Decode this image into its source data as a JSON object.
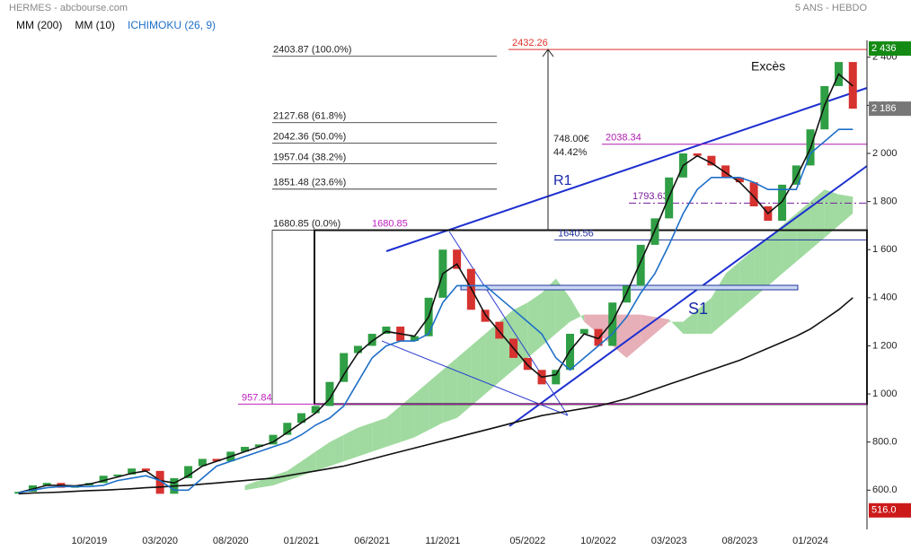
{
  "chart_data": {
    "type": "candlestick",
    "title": "HERMES - abcbourse.com",
    "subtitle": "5 ANS - HEBDO",
    "x": [
      "05/2019",
      "06/2019",
      "07/2019",
      "08/2019",
      "09/2019",
      "10/2019",
      "11/2019",
      "12/2019",
      "01/2020",
      "02/2020",
      "03/2020",
      "04/2020",
      "05/2020",
      "06/2020",
      "07/2020",
      "08/2020",
      "09/2020",
      "10/2020",
      "11/2020",
      "12/2020",
      "01/2021",
      "02/2021",
      "03/2021",
      "04/2021",
      "05/2021",
      "06/2021",
      "07/2021",
      "08/2021",
      "09/2021",
      "10/2021",
      "11/2021",
      "12/2021",
      "01/2022",
      "02/2022",
      "03/2022",
      "04/2022",
      "05/2022",
      "06/2022",
      "07/2022",
      "08/2022",
      "09/2022",
      "10/2022",
      "11/2022",
      "12/2022",
      "01/2023",
      "02/2023",
      "03/2023",
      "04/2023",
      "05/2023",
      "06/2023",
      "07/2023",
      "08/2023",
      "09/2023",
      "10/2023",
      "11/2023",
      "12/2023",
      "01/2024",
      "02/2024",
      "03/2024",
      "04/2024"
    ],
    "price": {
      "up_color": "#2f9e44",
      "down_color": "#d6322f",
      "values": [
        593,
        620,
        630,
        610,
        620,
        630,
        660,
        665,
        690,
        680,
        585,
        650,
        700,
        730,
        720,
        760,
        780,
        790,
        830,
        880,
        920,
        950,
        1050,
        1170,
        1200,
        1250,
        1280,
        1220,
        1240,
        1400,
        1600,
        1520,
        1350,
        1300,
        1230,
        1150,
        1100,
        1040,
        1100,
        1250,
        1270,
        1200,
        1380,
        1450,
        1620,
        1730,
        1900,
        2000,
        1990,
        1950,
        1900,
        1880,
        1780,
        1720,
        1870,
        1950,
        2100,
        2280,
        2380,
        2186
      ]
    },
    "series": [
      {
        "name": "MM (200)",
        "color": "#111111",
        "values": [
          585,
          588,
          590,
          592,
          595,
          598,
          600,
          603,
          606,
          610,
          613,
          617,
          620,
          625,
          630,
          635,
          640,
          645,
          650,
          660,
          670,
          680,
          690,
          700,
          715,
          730,
          745,
          760,
          775,
          790,
          805,
          820,
          835,
          850,
          865,
          880,
          895,
          910,
          920,
          930,
          940,
          950,
          965,
          980,
          1000,
          1020,
          1040,
          1060,
          1080,
          1100,
          1120,
          1140,
          1165,
          1190,
          1215,
          1240,
          1270,
          1310,
          1350,
          1400
        ]
      },
      {
        "name": "MM (10)",
        "color": "#111111",
        "values": [
          590,
          605,
          620,
          620,
          618,
          625,
          640,
          655,
          670,
          680,
          640,
          630,
          660,
          700,
          720,
          740,
          760,
          780,
          800,
          840,
          880,
          920,
          980,
          1080,
          1170,
          1220,
          1260,
          1250,
          1240,
          1320,
          1500,
          1540,
          1440,
          1330,
          1260,
          1190,
          1120,
          1070,
          1080,
          1180,
          1250,
          1230,
          1300,
          1420,
          1550,
          1680,
          1820,
          1950,
          1990,
          1960,
          1920,
          1880,
          1820,
          1750,
          1800,
          1900,
          2020,
          2200,
          2330,
          2280
        ]
      },
      {
        "name": "ICHIMOKU (26, 9)",
        "color": "#1e6fc8",
        "values": [
          590,
          600,
          610,
          615,
          615,
          615,
          620,
          640,
          650,
          660,
          640,
          600,
          600,
          650,
          700,
          720,
          740,
          760,
          780,
          800,
          830,
          870,
          900,
          950,
          1050,
          1150,
          1200,
          1220,
          1220,
          1250,
          1380,
          1450,
          1450,
          1450,
          1400,
          1350,
          1300,
          1250,
          1150,
          1100,
          1150,
          1200,
          1250,
          1320,
          1420,
          1500,
          1620,
          1750,
          1850,
          1900,
          1900,
          1900,
          1880,
          1850,
          1850,
          1850,
          2000,
          2050,
          2100,
          2100
        ]
      }
    ],
    "cloud": {
      "up_color": "#8fd48f",
      "down_color": "#e3a1ab",
      "span_a": [
        null,
        null,
        null,
        null,
        null,
        null,
        null,
        null,
        null,
        null,
        null,
        null,
        null,
        null,
        null,
        null,
        620,
        640,
        660,
        680,
        720,
        760,
        800,
        830,
        860,
        880,
        900,
        950,
        1000,
        1050,
        1100,
        1150,
        1200,
        1250,
        1300,
        1350,
        1380,
        1420,
        1480,
        1400,
        1300,
        1250,
        1200,
        1150,
        1200,
        1250,
        1300,
        1300,
        1350,
        1400,
        1500,
        1550,
        1600,
        1650,
        1700,
        1750,
        1800,
        1850,
        1830,
        1820
      ],
      "span_b": [
        null,
        null,
        null,
        null,
        null,
        null,
        null,
        null,
        null,
        null,
        null,
        null,
        null,
        null,
        null,
        null,
        600,
        610,
        620,
        640,
        660,
        680,
        700,
        720,
        740,
        760,
        780,
        800,
        820,
        850,
        880,
        900,
        950,
        1000,
        1050,
        1100,
        1150,
        1200,
        1250,
        1300,
        1330,
        1330,
        1330,
        1330,
        1330,
        1320,
        1310,
        1250,
        1250,
        1250,
        1300,
        1350,
        1400,
        1450,
        1500,
        1550,
        1600,
        1650,
        1700,
        1750
      ]
    },
    "xlim": [
      "04/2019",
      "05/2024"
    ],
    "xticks": [
      "10/2019",
      "03/2020",
      "08/2020",
      "01/2021",
      "06/2021",
      "11/2021",
      "05/2022",
      "10/2022",
      "03/2023",
      "08/2023",
      "01/2024"
    ],
    "ylim": [
      437,
      2470
    ],
    "yticks": [
      {
        "value": 600,
        "label": "600.0"
      },
      {
        "value": 800,
        "label": "800.0"
      },
      {
        "value": 1000,
        "label": "1 000"
      },
      {
        "value": 1200,
        "label": "1 200"
      },
      {
        "value": 1400,
        "label": "1 400"
      },
      {
        "value": 1600,
        "label": "1 600"
      },
      {
        "value": 1800,
        "label": "1 800"
      },
      {
        "value": 2000,
        "label": "2 000"
      },
      {
        "value": 2200,
        "label": "2 200"
      },
      {
        "value": 2400,
        "label": "2 400"
      }
    ],
    "fibonacci": [
      {
        "value": 2403.87,
        "label": "2403.87  (100.0%)"
      },
      {
        "value": 2127.68,
        "label": "2127.68  (61.8%)"
      },
      {
        "value": 2042.36,
        "label": "2042.36  (50.0%)"
      },
      {
        "value": 1957.04,
        "label": "1957.04  (38.2%)"
      },
      {
        "value": 1851.48,
        "label": "1851.48  (23.6%)"
      },
      {
        "value": 1680.85,
        "label": "1680.85  (0.0%)"
      }
    ],
    "levels": [
      {
        "value": 2432.26,
        "label": "2432.26",
        "color": "#e0302a"
      },
      {
        "value": 2038.34,
        "label": "2038.34",
        "color": "#b01cb0"
      },
      {
        "value": 1793.63,
        "label": "1793.63",
        "color": "#7a1c9a"
      },
      {
        "value": 1680.85,
        "label": "1680.85",
        "color": "#c020c0"
      },
      {
        "value": 1640.56,
        "label": "1640.56",
        "color": "#23339e"
      },
      {
        "value": 957.84,
        "label": "957.84",
        "color": "#c020c0"
      }
    ],
    "price_markers": [
      {
        "value": 2436,
        "label": "2 436",
        "color": "#138a13"
      },
      {
        "value": 2186,
        "label": "2 186",
        "color": "#777777"
      },
      {
        "value": 516,
        "label": "516.0",
        "color": "#cc1a1a"
      }
    ],
    "annotations": {
      "move": [
        "748.00€",
        "44.42%"
      ],
      "resistance": "R1",
      "support": "S1",
      "excess": "Excès"
    }
  }
}
